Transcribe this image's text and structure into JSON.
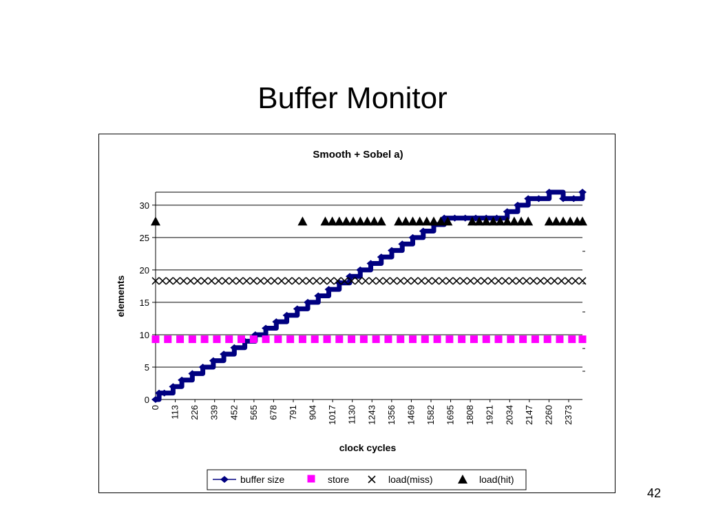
{
  "slide": {
    "title": "Buffer Monitor",
    "page_number": "42"
  },
  "chart_data": {
    "type": "scatter",
    "title": "Smooth + Sobel a)",
    "xlabel": "clock cycles",
    "ylabel": "elements",
    "ylim": [
      0,
      32
    ],
    "yticks": [
      0,
      5,
      10,
      15,
      20,
      25,
      30
    ],
    "x_tick_labels": [
      "0",
      "113",
      "226",
      "339",
      "452",
      "565",
      "678",
      "791",
      "904",
      "1017",
      "1130",
      "1243",
      "1356",
      "1469",
      "1582",
      "1695",
      "1808",
      "1921",
      "2034",
      "2147",
      "2260",
      "2373"
    ],
    "xlim": [
      0,
      2440
    ],
    "grid": "horizontal",
    "legend_position": "bottom",
    "series": [
      {
        "name": "buffer size",
        "marker": "diamond-line",
        "color": "#000080",
        "x": [
          0,
          20,
          50,
          100,
          150,
          210,
          270,
          330,
          390,
          450,
          510,
          570,
          630,
          690,
          750,
          810,
          870,
          930,
          990,
          1050,
          1110,
          1170,
          1230,
          1290,
          1350,
          1410,
          1470,
          1530,
          1590,
          1650,
          1710,
          1770,
          1830,
          1890,
          1950,
          2010,
          2070,
          2130,
          2190,
          2250,
          2330,
          2390,
          2440
        ],
        "y": [
          0,
          1,
          1,
          2,
          3,
          4,
          5,
          6,
          7,
          8,
          9,
          10,
          11,
          12,
          13,
          14,
          15,
          16,
          17,
          18,
          19,
          20,
          21,
          22,
          23,
          24,
          25,
          26,
          27,
          28,
          28,
          28,
          28,
          28,
          28,
          29,
          30,
          31,
          31,
          32,
          31,
          31,
          32
        ]
      },
      {
        "name": "store",
        "marker": "square",
        "color": "#ff00ff",
        "x": [
          0,
          70,
          140,
          210,
          280,
          350,
          420,
          490,
          560,
          630,
          700,
          770,
          840,
          910,
          980,
          1050,
          1120,
          1190,
          1260,
          1330,
          1400,
          1470,
          1540,
          1610,
          1680,
          1750,
          1820,
          1890,
          1960,
          2030,
          2100,
          2170,
          2240,
          2310,
          2380,
          2440
        ],
        "y": [
          9.3,
          9.3,
          9.3,
          9.3,
          9.3,
          9.3,
          9.3,
          9.3,
          9.3,
          9.3,
          9.3,
          9.3,
          9.3,
          9.3,
          9.3,
          9.3,
          9.3,
          9.3,
          9.3,
          9.3,
          9.3,
          9.3,
          9.3,
          9.3,
          9.3,
          9.3,
          9.3,
          9.3,
          9.3,
          9.3,
          9.3,
          9.3,
          9.3,
          9.3,
          9.3,
          9.3
        ]
      },
      {
        "name": "load(miss)",
        "marker": "x",
        "color": "#000000",
        "x": [
          0,
          40,
          80,
          120,
          160,
          200,
          240,
          280,
          320,
          360,
          400,
          440,
          480,
          520,
          560,
          600,
          640,
          680,
          720,
          760,
          800,
          840,
          880,
          920,
          960,
          1000,
          1040,
          1080,
          1120,
          1160,
          1200,
          1240,
          1280,
          1320,
          1360,
          1400,
          1440,
          1480,
          1520,
          1560,
          1600,
          1640,
          1680,
          1720,
          1760,
          1800,
          1840,
          1880,
          1920,
          1960,
          2000,
          2040,
          2080,
          2120,
          2160,
          2200,
          2240,
          2280,
          2320,
          2360,
          2400,
          2440
        ],
        "y": [
          18.3,
          18.3,
          18.3,
          18.3,
          18.3,
          18.3,
          18.3,
          18.3,
          18.3,
          18.3,
          18.3,
          18.3,
          18.3,
          18.3,
          18.3,
          18.3,
          18.3,
          18.3,
          18.3,
          18.3,
          18.3,
          18.3,
          18.3,
          18.3,
          18.3,
          18.3,
          18.3,
          18.3,
          18.3,
          18.3,
          18.3,
          18.3,
          18.3,
          18.3,
          18.3,
          18.3,
          18.3,
          18.3,
          18.3,
          18.3,
          18.3,
          18.3,
          18.3,
          18.3,
          18.3,
          18.3,
          18.3,
          18.3,
          18.3,
          18.3,
          18.3,
          18.3,
          18.3,
          18.3,
          18.3,
          18.3,
          18.3,
          18.3,
          18.3,
          18.3,
          18.3,
          18.3
        ]
      },
      {
        "name": "load(hit)",
        "marker": "triangle",
        "color": "#000000",
        "x": [
          0,
          840,
          970,
          1010,
          1050,
          1090,
          1130,
          1170,
          1210,
          1250,
          1290,
          1390,
          1430,
          1470,
          1510,
          1550,
          1590,
          1630,
          1670,
          1810,
          1850,
          1890,
          1930,
          1970,
          2010,
          2050,
          2090,
          2130,
          2250,
          2290,
          2330,
          2370,
          2410,
          2440
        ],
        "y": [
          27.5,
          27.5,
          27.5,
          27.5,
          27.5,
          27.5,
          27.5,
          27.5,
          27.5,
          27.5,
          27.5,
          27.5,
          27.5,
          27.5,
          27.5,
          27.5,
          27.5,
          27.5,
          27.5,
          27.5,
          27.5,
          27.5,
          27.5,
          27.5,
          27.5,
          27.5,
          27.5,
          27.5,
          27.5,
          27.5,
          27.5,
          27.5,
          27.5,
          27.5
        ]
      }
    ]
  }
}
